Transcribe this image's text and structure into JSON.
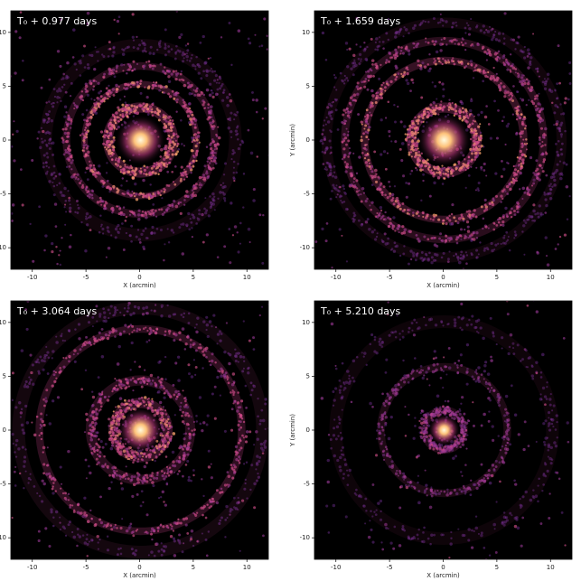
{
  "chart_data": [
    {
      "type": "image",
      "title": "T₀ + 0.977 days",
      "xlabel": "X (arcmin)",
      "xlim": [
        -12,
        12
      ],
      "ylim": [
        -12,
        12
      ],
      "xticks": [
        -10,
        -5,
        0,
        5,
        10
      ],
      "yticks": [
        -10,
        -5,
        0,
        5,
        10
      ]
    },
    {
      "type": "image",
      "title": "T₀ + 1.659 days",
      "xlabel": "X (arcmin)",
      "ylabel": "Y (arcmin)",
      "xlim": [
        -12,
        12
      ],
      "ylim": [
        -12,
        12
      ],
      "xticks": [
        -10,
        -5,
        0,
        5,
        10
      ],
      "yticks": [
        -10,
        -5,
        0,
        5,
        10
      ]
    },
    {
      "type": "image",
      "title": "T₀ + 3.064 days",
      "xlabel": "X (arcmin)",
      "xlim": [
        -12,
        12
      ],
      "ylim": [
        -12,
        12
      ],
      "xticks": [
        -10,
        -5,
        0,
        5,
        10
      ],
      "yticks": [
        -10,
        -5,
        0,
        5,
        10
      ]
    },
    {
      "type": "image",
      "title": "T₀ + 5.210 days",
      "xlabel": "X (arcmin)",
      "ylabel": "Y (arcmin)",
      "xlim": [
        -12,
        12
      ],
      "ylim": [
        -12,
        12
      ],
      "xticks": [
        -10,
        -5,
        0,
        5,
        10
      ],
      "yticks": [
        -10,
        -5,
        0,
        5,
        10
      ]
    }
  ]
}
